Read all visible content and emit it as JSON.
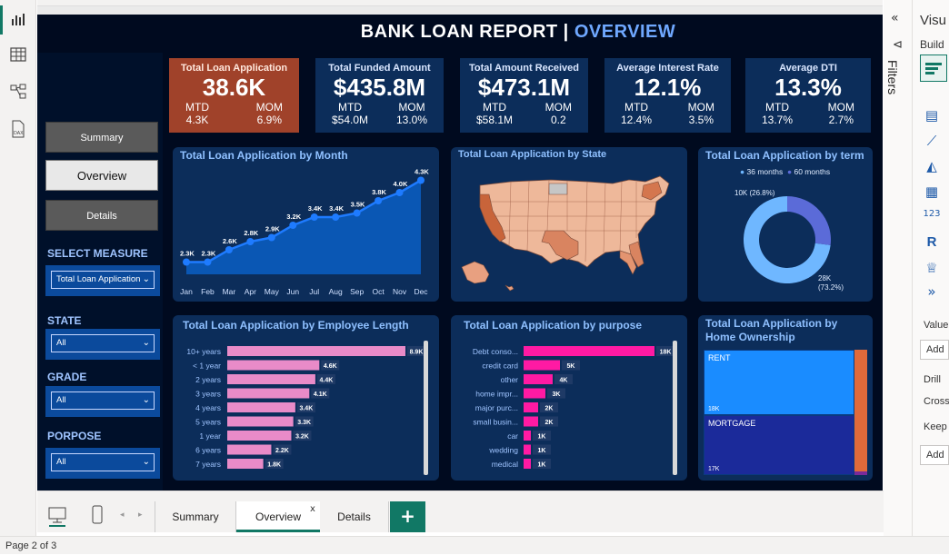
{
  "report": {
    "title_main": "BANK LOAN REPORT | ",
    "title_highlight": "OVERVIEW"
  },
  "nav": {
    "summary": "Summary",
    "overview": "Overview",
    "details": "Details"
  },
  "filters": {
    "select_measure_label": "SELECT MEASURE",
    "select_measure_value": "Total Loan Application",
    "state_label": "STATE",
    "state_value": "All",
    "grade_label": "GRADE",
    "grade_value": "All",
    "purpose_label": "PORPOSE",
    "purpose_value": "All"
  },
  "kpis": [
    {
      "title": "Total Loan Application",
      "value": "38.6K",
      "mtd_label": "MTD",
      "mtd": "4.3K",
      "mom_label": "MOM",
      "mom": "6.9%"
    },
    {
      "title": "Total Funded Amount",
      "value": "$435.8M",
      "mtd_label": "MTD",
      "mtd": "$54.0M",
      "mom_label": "MOM",
      "mom": "13.0%"
    },
    {
      "title": "Total Amount Received",
      "value": "$473.1M",
      "mtd_label": "MTD",
      "mtd": "$58.1M",
      "mom_label": "MOM",
      "mom": "0.2"
    },
    {
      "title": "Average Interest Rate",
      "value": "12.1%",
      "mtd_label": "MTD",
      "mtd": "12.4%",
      "mom_label": "MOM",
      "mom": "3.5%"
    },
    {
      "title": "Average DTI",
      "value": "13.3%",
      "mtd_label": "MTD",
      "mtd": "13.7%",
      "mom_label": "MOM",
      "mom": "2.7%"
    }
  ],
  "panels": {
    "by_month": "Total Loan Application by Month",
    "by_state": "Total Loan Application by State",
    "by_term": "Total Loan Application by term",
    "by_emp_length": "Total Loan Application by Employee Length",
    "by_purpose": "Total Loan Application by purpose",
    "by_home_ownership": "Total Loan Application by Home Ownership"
  },
  "chart_data": [
    {
      "type": "area",
      "categories": [
        "Jan",
        "Feb",
        "Mar",
        "Apr",
        "May",
        "Jun",
        "Jul",
        "Aug",
        "Sep",
        "Oct",
        "Nov",
        "Dec"
      ],
      "values": [
        2.3,
        2.3,
        2.6,
        2.8,
        2.9,
        3.2,
        3.4,
        3.4,
        3.5,
        3.8,
        4.0,
        4.3
      ],
      "labels": [
        "2.3K",
        "2.3K",
        "2.6K",
        "2.8K",
        "2.9K",
        "3.2K",
        "3.4K",
        "3.4K",
        "3.5K",
        "3.8K",
        "4.0K",
        "4.3K"
      ],
      "ylim": [
        2.0,
        4.4
      ],
      "color": "#1e7bff"
    },
    {
      "type": "pie",
      "legend": [
        "36 months",
        "60 months"
      ],
      "values": [
        28.2,
        10.4
      ],
      "labels": [
        "28K (73.2%)",
        "10K (26.8%)"
      ],
      "colors": [
        "#6fb7ff",
        "#5b6bd8"
      ],
      "legend_placement": "top"
    },
    {
      "type": "bar",
      "categories": [
        "10+ years",
        "< 1 year",
        "2 years",
        "3 years",
        "4 years",
        "5 years",
        "1 year",
        "6 years",
        "7 years"
      ],
      "values": [
        8.9,
        4.6,
        4.4,
        4.1,
        3.4,
        3.3,
        3.2,
        2.2,
        1.8
      ],
      "labels": [
        "8.9K",
        "4.6K",
        "4.4K",
        "4.1K",
        "3.4K",
        "3.3K",
        "3.2K",
        "2.2K",
        "1.8K"
      ],
      "color": "#e98bc8"
    },
    {
      "type": "bar",
      "categories": [
        "Debt conso...",
        "credit card",
        "other",
        "home impr...",
        "major purc...",
        "small busin...",
        "car",
        "wedding",
        "medical"
      ],
      "values": [
        18,
        5,
        4,
        3,
        2,
        2,
        1,
        1,
        1
      ],
      "labels": [
        "18K",
        "5K",
        "4K",
        "3K",
        "2K",
        "2K",
        "1K",
        "1K",
        "1K"
      ],
      "color": "#ff1aa3"
    },
    {
      "type": "heatmap",
      "categories": [
        "RENT",
        "MORTGAGE"
      ],
      "labels": [
        "18K",
        "17K"
      ],
      "values": [
        18,
        17
      ],
      "colors": [
        "#1a8cff",
        "#1b2a9a",
        "#e06a3a"
      ]
    }
  ],
  "tabs": [
    "Summary",
    "Overview",
    "Details"
  ],
  "tab_add": "+",
  "tab_close": "x",
  "status": {
    "page": "Page 2 of 3"
  },
  "right_pane": {
    "filters_label": "Filters",
    "vis_label": "Visu",
    "build": "Build",
    "value": "Value",
    "add1": "Add",
    "drill": "Drill",
    "cross": "Cross",
    "keep": "Keep",
    "add2": "Add",
    "r_icon": "R"
  },
  "icons": {
    "report_view": "bar-chart-icon",
    "table_view": "table-icon",
    "model_view": "model-icon",
    "dax_view": "dax-icon"
  }
}
